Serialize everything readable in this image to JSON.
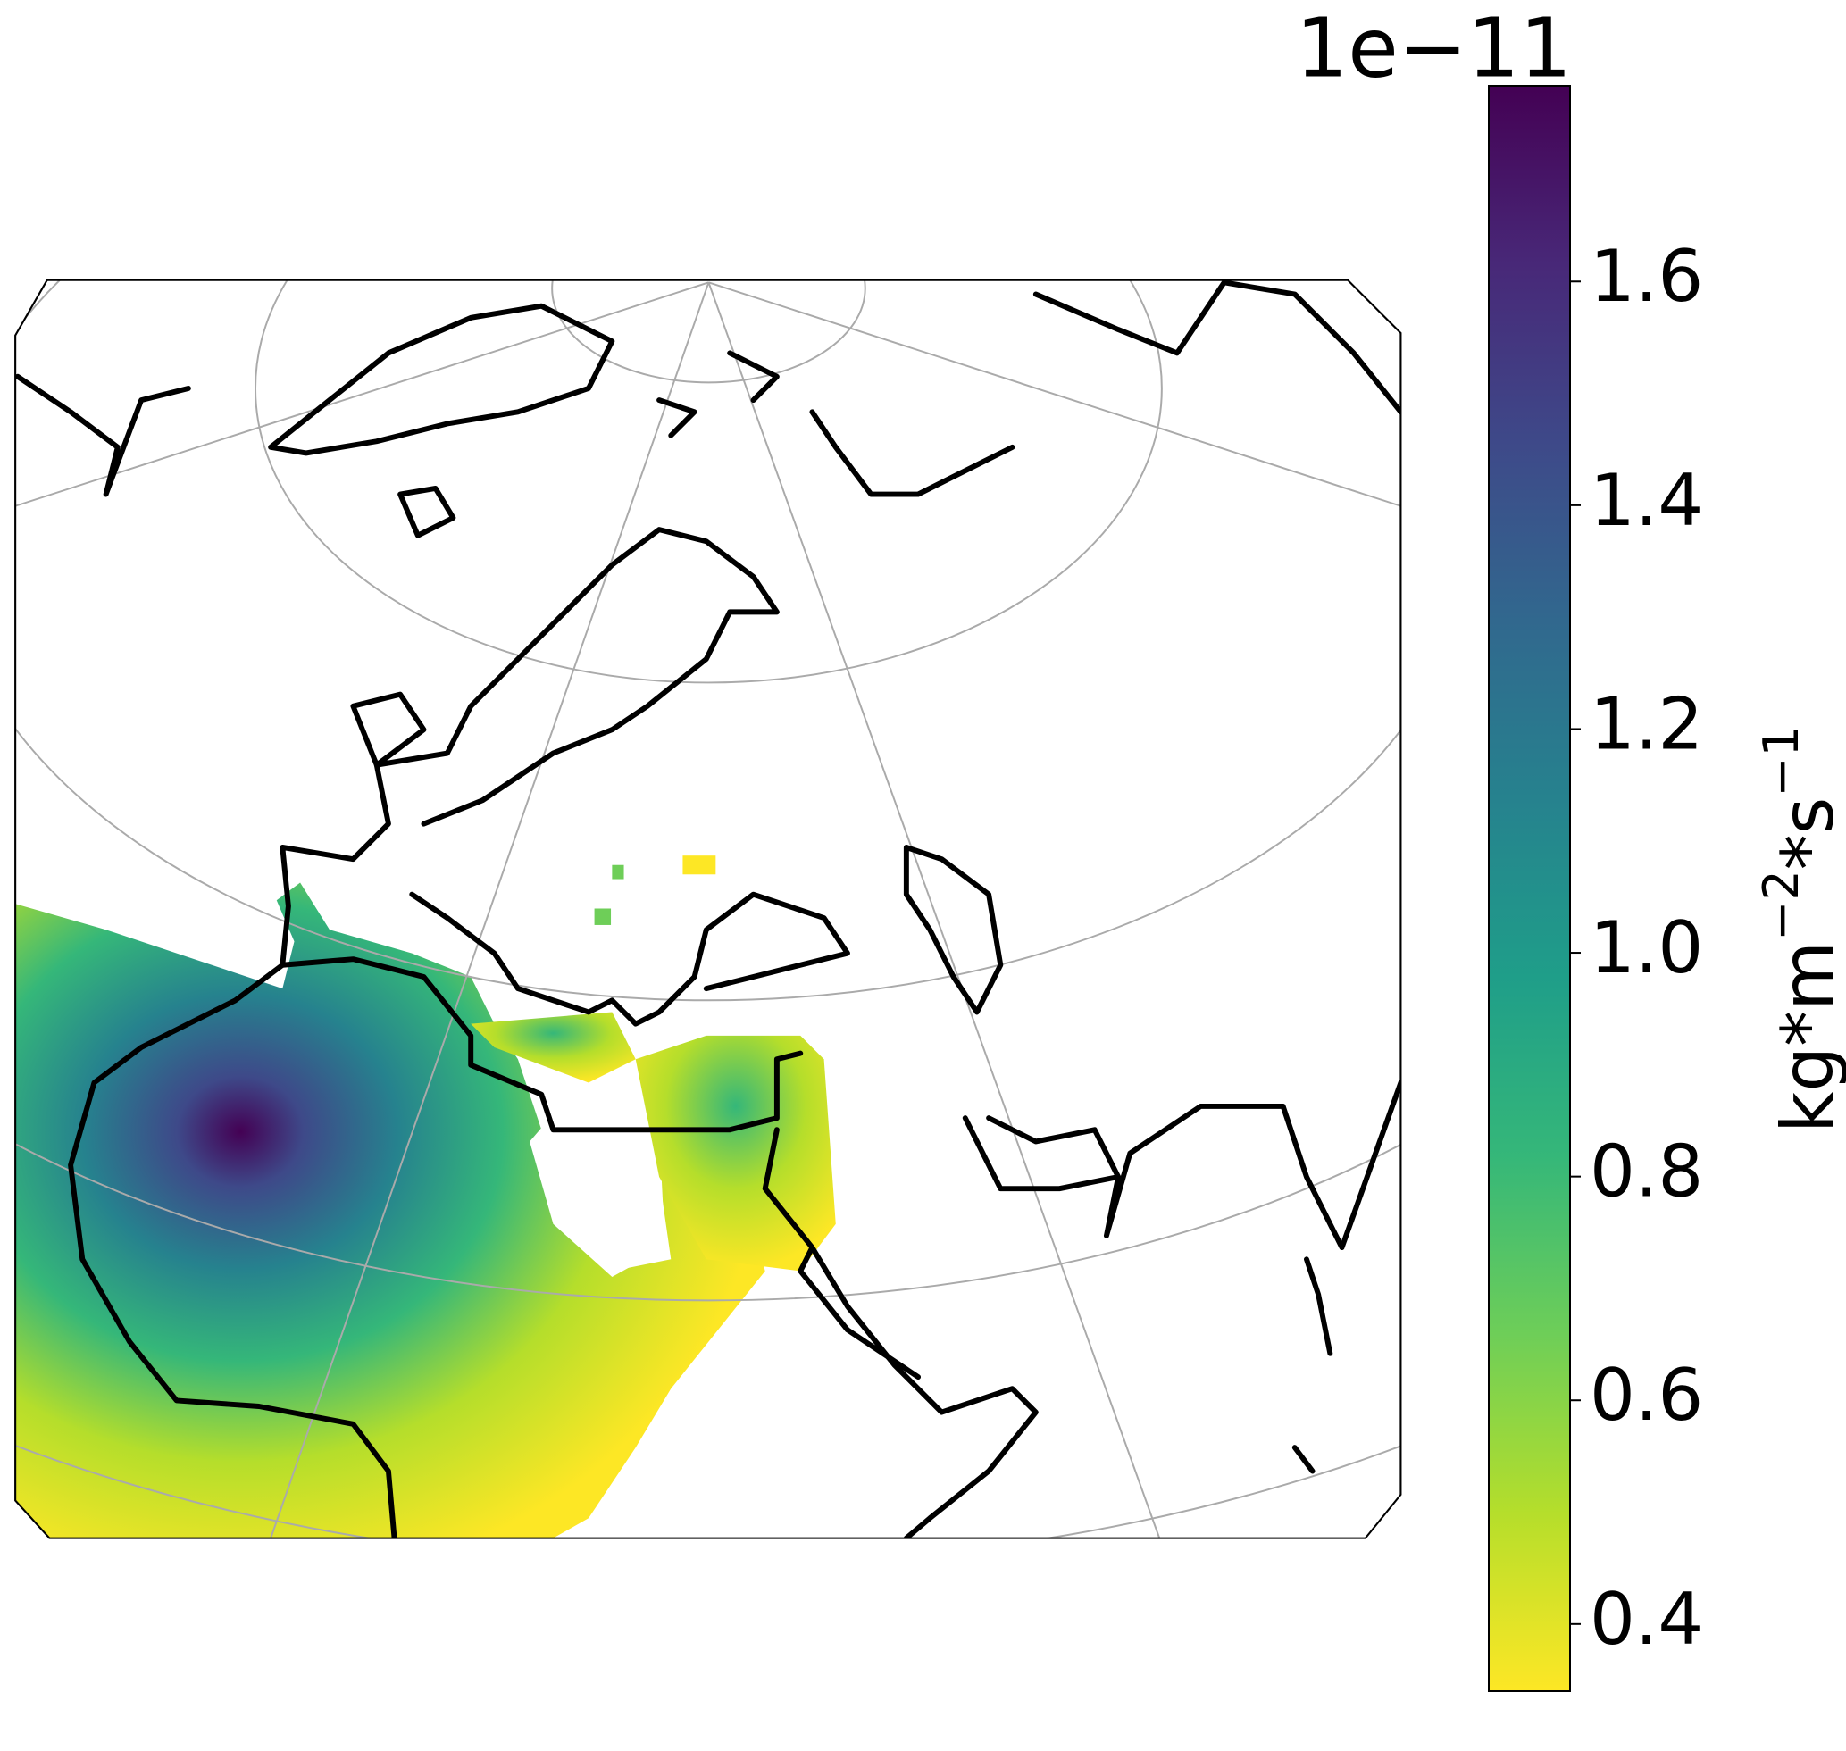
{
  "colorbar": {
    "offset_text": "1e−11",
    "label": [
      "kg*m",
      "−2",
      "*s",
      "−1"
    ],
    "lim": [
      0.34,
      1.775
    ],
    "ticks": [
      0.4,
      0.6,
      0.8,
      {
        "value": 1,
        "label": "1.0"
      },
      1.2,
      1.4,
      1.6
    ],
    "colormap": [
      "#fde725",
      "#b5de2b",
      "#6ece58",
      "#35b779",
      "#1f9e89",
      "#26828e",
      "#31688e",
      "#3e4989",
      "#482878",
      "#440154"
    ]
  }
}
